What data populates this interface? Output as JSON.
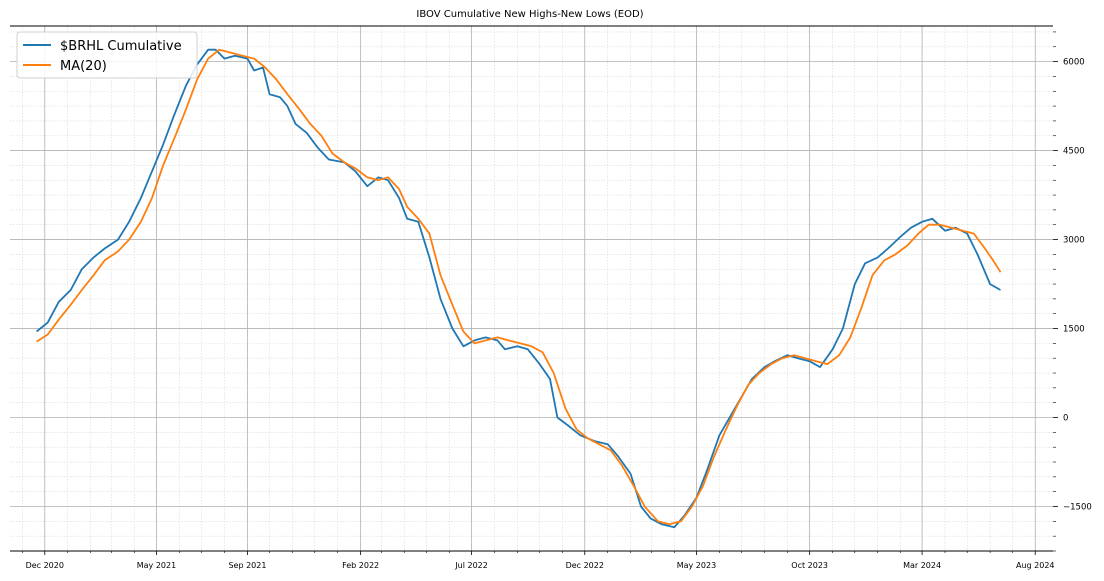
{
  "chart_data": {
    "type": "line",
    "title": "IBOV Cumulative New Highs-New Lows (EOD)",
    "xlabel": "",
    "ylabel": "",
    "x_ticks": [
      "Dec 2020",
      "May 2021",
      "Sep 2021",
      "Feb 2022",
      "Jul 2022",
      "Dec 2022",
      "May 2023",
      "Oct 2023",
      "Mar 2024",
      "Aug 2024"
    ],
    "x_range": [
      "2020-10-15",
      "2024-08-25"
    ],
    "y_ticks": [
      -1500,
      0,
      1500,
      3000,
      4500,
      6000
    ],
    "ylim": [
      -2250,
      6600
    ],
    "grid": true,
    "y_axis_side": "right",
    "legend_position": "top-left",
    "colors": {
      "series_1": "#1f77b4",
      "series_2": "#ff7f0e",
      "grid_major": "#b0b0b0",
      "grid_minor": "#d8d8d8"
    },
    "series": [
      {
        "name": "$BRHL Cumulative",
        "color": "#1f77b4",
        "points": [
          [
            "2020-11-20",
            1450
          ],
          [
            "2020-12-05",
            1600
          ],
          [
            "2020-12-20",
            1950
          ],
          [
            "2021-01-05",
            2150
          ],
          [
            "2021-01-20",
            2500
          ],
          [
            "2021-02-05",
            2700
          ],
          [
            "2021-02-20",
            2850
          ],
          [
            "2021-03-10",
            3000
          ],
          [
            "2021-03-25",
            3300
          ],
          [
            "2021-04-10",
            3700
          ],
          [
            "2021-04-25",
            4150
          ],
          [
            "2021-05-10",
            4600
          ],
          [
            "2021-05-25",
            5100
          ],
          [
            "2021-06-10",
            5600
          ],
          [
            "2021-06-25",
            5950
          ],
          [
            "2021-07-10",
            6200
          ],
          [
            "2021-07-20",
            6200
          ],
          [
            "2021-08-01",
            6050
          ],
          [
            "2021-08-15",
            6100
          ],
          [
            "2021-09-01",
            6050
          ],
          [
            "2021-09-10",
            5850
          ],
          [
            "2021-09-22",
            5900
          ],
          [
            "2021-10-01",
            5450
          ],
          [
            "2021-10-15",
            5400
          ],
          [
            "2021-10-25",
            5250
          ],
          [
            "2021-11-05",
            4950
          ],
          [
            "2021-11-20",
            4800
          ],
          [
            "2021-12-05",
            4550
          ],
          [
            "2021-12-20",
            4350
          ],
          [
            "2022-01-10",
            4300
          ],
          [
            "2022-01-25",
            4150
          ],
          [
            "2022-02-10",
            3900
          ],
          [
            "2022-02-25",
            4050
          ],
          [
            "2022-03-10",
            4000
          ],
          [
            "2022-03-25",
            3700
          ],
          [
            "2022-04-05",
            3350
          ],
          [
            "2022-04-20",
            3300
          ],
          [
            "2022-05-05",
            2700
          ],
          [
            "2022-05-20",
            2000
          ],
          [
            "2022-06-05",
            1500
          ],
          [
            "2022-06-20",
            1200
          ],
          [
            "2022-07-05",
            1300
          ],
          [
            "2022-07-20",
            1350
          ],
          [
            "2022-08-05",
            1300
          ],
          [
            "2022-08-15",
            1150
          ],
          [
            "2022-09-01",
            1200
          ],
          [
            "2022-09-15",
            1150
          ],
          [
            "2022-10-01",
            900
          ],
          [
            "2022-10-15",
            650
          ],
          [
            "2022-10-25",
            0
          ],
          [
            "2022-11-10",
            -150
          ],
          [
            "2022-11-25",
            -300
          ],
          [
            "2022-12-15",
            -400
          ],
          [
            "2023-01-01",
            -450
          ],
          [
            "2023-01-15",
            -650
          ],
          [
            "2023-02-01",
            -950
          ],
          [
            "2023-02-15",
            -1500
          ],
          [
            "2023-02-28",
            -1700
          ],
          [
            "2023-03-15",
            -1800
          ],
          [
            "2023-04-01",
            -1850
          ],
          [
            "2023-04-15",
            -1650
          ],
          [
            "2023-05-01",
            -1350
          ],
          [
            "2023-05-15",
            -900
          ],
          [
            "2023-06-01",
            -300
          ],
          [
            "2023-06-15",
            0
          ],
          [
            "2023-07-01",
            350
          ],
          [
            "2023-07-15",
            650
          ],
          [
            "2023-08-01",
            850
          ],
          [
            "2023-08-15",
            950
          ],
          [
            "2023-09-01",
            1050
          ],
          [
            "2023-09-15",
            1000
          ],
          [
            "2023-10-01",
            950
          ],
          [
            "2023-10-15",
            850
          ],
          [
            "2023-11-01",
            1150
          ],
          [
            "2023-11-15",
            1500
          ],
          [
            "2023-12-01",
            2250
          ],
          [
            "2023-12-15",
            2600
          ],
          [
            "2024-01-01",
            2700
          ],
          [
            "2024-01-15",
            2850
          ],
          [
            "2024-02-01",
            3050
          ],
          [
            "2024-02-15",
            3200
          ],
          [
            "2024-03-01",
            3300
          ],
          [
            "2024-03-15",
            3350
          ],
          [
            "2024-04-01",
            3150
          ],
          [
            "2024-04-15",
            3200
          ],
          [
            "2024-05-01",
            3100
          ],
          [
            "2024-05-15",
            2750
          ],
          [
            "2024-06-01",
            2250
          ],
          [
            "2024-06-15",
            2150
          ]
        ]
      },
      {
        "name": "MA(20)",
        "color": "#ff7f0e",
        "points": [
          [
            "2020-11-20",
            1280
          ],
          [
            "2020-12-05",
            1400
          ],
          [
            "2020-12-20",
            1650
          ],
          [
            "2021-01-05",
            1900
          ],
          [
            "2021-01-20",
            2150
          ],
          [
            "2021-02-05",
            2400
          ],
          [
            "2021-02-20",
            2650
          ],
          [
            "2021-03-10",
            2800
          ],
          [
            "2021-03-25",
            3000
          ],
          [
            "2021-04-10",
            3300
          ],
          [
            "2021-04-25",
            3700
          ],
          [
            "2021-05-10",
            4250
          ],
          [
            "2021-05-25",
            4700
          ],
          [
            "2021-06-10",
            5200
          ],
          [
            "2021-06-25",
            5700
          ],
          [
            "2021-07-10",
            6050
          ],
          [
            "2021-07-25",
            6200
          ],
          [
            "2021-08-10",
            6150
          ],
          [
            "2021-08-25",
            6100
          ],
          [
            "2021-09-10",
            6050
          ],
          [
            "2021-09-25",
            5900
          ],
          [
            "2021-10-10",
            5700
          ],
          [
            "2021-10-25",
            5450
          ],
          [
            "2021-11-10",
            5200
          ],
          [
            "2021-11-25",
            4950
          ],
          [
            "2021-12-10",
            4750
          ],
          [
            "2021-12-25",
            4450
          ],
          [
            "2022-01-10",
            4300
          ],
          [
            "2022-01-25",
            4200
          ],
          [
            "2022-02-10",
            4050
          ],
          [
            "2022-02-25",
            4000
          ],
          [
            "2022-03-10",
            4050
          ],
          [
            "2022-03-25",
            3850
          ],
          [
            "2022-04-05",
            3550
          ],
          [
            "2022-04-20",
            3350
          ],
          [
            "2022-05-05",
            3100
          ],
          [
            "2022-05-20",
            2400
          ],
          [
            "2022-06-05",
            1900
          ],
          [
            "2022-06-20",
            1450
          ],
          [
            "2022-07-05",
            1250
          ],
          [
            "2022-07-20",
            1300
          ],
          [
            "2022-08-05",
            1350
          ],
          [
            "2022-08-20",
            1300
          ],
          [
            "2022-09-05",
            1250
          ],
          [
            "2022-09-20",
            1200
          ],
          [
            "2022-10-05",
            1100
          ],
          [
            "2022-10-20",
            750
          ],
          [
            "2022-11-05",
            150
          ],
          [
            "2022-11-20",
            -200
          ],
          [
            "2022-12-05",
            -350
          ],
          [
            "2022-12-20",
            -450
          ],
          [
            "2023-01-05",
            -550
          ],
          [
            "2023-01-20",
            -800
          ],
          [
            "2023-02-05",
            -1150
          ],
          [
            "2023-02-20",
            -1500
          ],
          [
            "2023-03-10",
            -1750
          ],
          [
            "2023-03-25",
            -1800
          ],
          [
            "2023-04-10",
            -1750
          ],
          [
            "2023-04-25",
            -1500
          ],
          [
            "2023-05-10",
            -1150
          ],
          [
            "2023-05-25",
            -650
          ],
          [
            "2023-06-10",
            -200
          ],
          [
            "2023-06-25",
            200
          ],
          [
            "2023-07-10",
            550
          ],
          [
            "2023-07-25",
            750
          ],
          [
            "2023-08-10",
            900
          ],
          [
            "2023-08-25",
            1000
          ],
          [
            "2023-09-10",
            1050
          ],
          [
            "2023-09-25",
            1000
          ],
          [
            "2023-10-10",
            950
          ],
          [
            "2023-10-25",
            900
          ],
          [
            "2023-11-10",
            1050
          ],
          [
            "2023-11-25",
            1350
          ],
          [
            "2023-12-10",
            1850
          ],
          [
            "2023-12-25",
            2400
          ],
          [
            "2024-01-10",
            2650
          ],
          [
            "2024-01-25",
            2750
          ],
          [
            "2024-02-10",
            2900
          ],
          [
            "2024-02-25",
            3100
          ],
          [
            "2024-03-10",
            3250
          ],
          [
            "2024-03-25",
            3250
          ],
          [
            "2024-04-10",
            3200
          ],
          [
            "2024-04-25",
            3150
          ],
          [
            "2024-05-10",
            3100
          ],
          [
            "2024-05-25",
            2850
          ],
          [
            "2024-06-05",
            2650
          ],
          [
            "2024-06-15",
            2450
          ]
        ]
      }
    ]
  }
}
